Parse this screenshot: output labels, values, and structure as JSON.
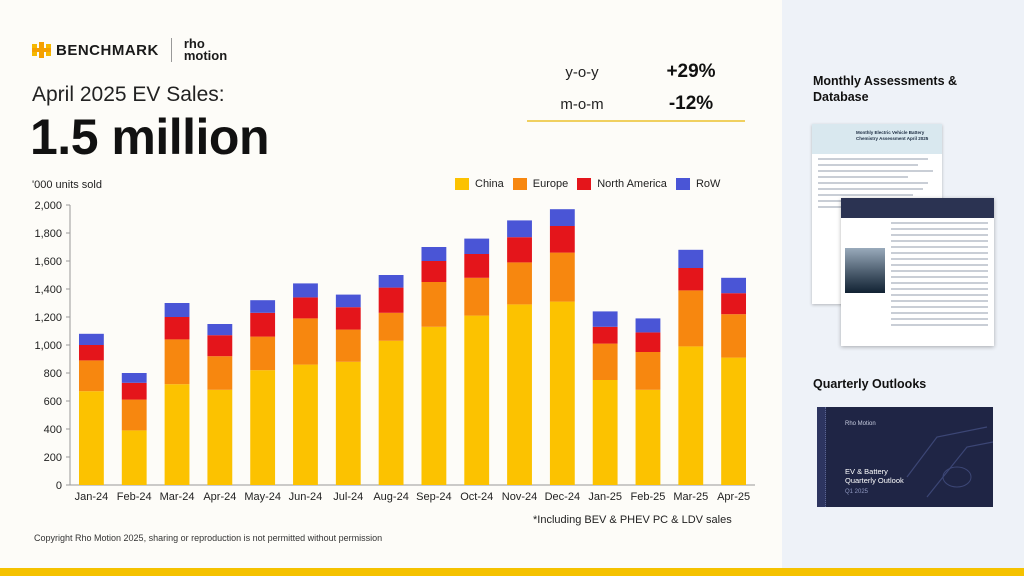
{
  "brand": {
    "benchmark": "BENCHMARK",
    "rho_line1": "rho",
    "rho_line2": "motion"
  },
  "subtitle": "April 2025 EV Sales:",
  "headline": "1.5 million",
  "stats": [
    {
      "label": "y-o-y",
      "value": "+29%"
    },
    {
      "label": "m-o-m",
      "value": "-12%"
    }
  ],
  "unit_label": "'000 units sold",
  "footnote": "*Including BEV & PHEV PC & LDV sales",
  "copyright": "Copyright Rho Motion 2025, sharing or reproduction is not permitted without permission",
  "sidebar": {
    "monthly_title": "Monthly Assessments & Database",
    "quarterly_title": "Quarterly Outlooks",
    "doc1_title": "Monthly Electric Vehicle Battery Chemistry Assessment April 2025",
    "doc3_title": "EV & Battery Quarterly Outlook",
    "doc3_sub": "Q1 2025",
    "doc3_brand": "Rho Motion"
  },
  "colors": {
    "China": "#fcc200",
    "Europe": "#f7870f",
    "North America": "#e4151b",
    "RoW": "#4a55d6"
  },
  "chart_data": {
    "type": "bar",
    "stacked": true,
    "categories": [
      "Jan-24",
      "Feb-24",
      "Mar-24",
      "Apr-24",
      "May-24",
      "Jun-24",
      "Jul-24",
      "Aug-24",
      "Sep-24",
      "Oct-24",
      "Nov-24",
      "Dec-24",
      "Jan-25",
      "Feb-25",
      "Mar-25",
      "Apr-25"
    ],
    "series": [
      {
        "name": "China",
        "values": [
          670,
          390,
          720,
          680,
          820,
          860,
          880,
          1030,
          1130,
          1210,
          1290,
          1310,
          750,
          680,
          990,
          910
        ]
      },
      {
        "name": "Europe",
        "values": [
          220,
          220,
          320,
          240,
          240,
          330,
          230,
          200,
          320,
          270,
          300,
          350,
          260,
          270,
          400,
          310
        ]
      },
      {
        "name": "North America",
        "values": [
          110,
          120,
          160,
          150,
          170,
          150,
          160,
          180,
          150,
          170,
          180,
          190,
          120,
          140,
          160,
          150
        ]
      },
      {
        "name": "RoW",
        "values": [
          80,
          70,
          100,
          80,
          90,
          100,
          90,
          90,
          100,
          110,
          120,
          120,
          110,
          100,
          130,
          110
        ]
      }
    ],
    "ylim": [
      0,
      2000
    ],
    "yticks": [
      "0",
      "200",
      "400",
      "600",
      "800",
      "1,000",
      "1,200",
      "1,400",
      "1,600",
      "1,800",
      "2,000"
    ],
    "legend_position": "top-right",
    "grid": false
  }
}
